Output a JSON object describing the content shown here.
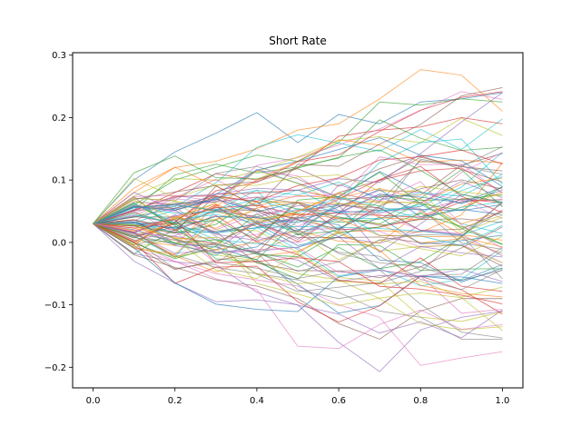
{
  "chart_data": {
    "type": "line",
    "title": "Short Rate",
    "xlabel": "",
    "ylabel": "",
    "xlim": [
      -0.05,
      1.05
    ],
    "ylim": [
      -0.233,
      0.304
    ],
    "grid": false,
    "x": [
      0.0,
      0.1,
      0.2,
      0.3,
      0.4,
      0.5,
      0.6,
      0.7,
      0.8,
      0.9,
      1.0
    ],
    "x_ticks": [
      0.0,
      0.2,
      0.4,
      0.6,
      0.8,
      1.0
    ],
    "x_tick_labels": [
      "0.0",
      "0.2",
      "0.4",
      "0.6",
      "0.8",
      "1.0"
    ],
    "y_ticks": [
      -0.2,
      -0.1,
      0.0,
      0.1,
      0.2,
      0.3
    ],
    "y_tick_labels": [
      "−0.2",
      "−0.1",
      "0.0",
      "0.1",
      "0.2",
      "0.3"
    ],
    "series_count": 100,
    "start_value": 0.03,
    "highlighted_series": [
      {
        "values": [
          0.03,
          0.1,
          0.145,
          0.175,
          0.208,
          0.16,
          0.205,
          0.19,
          0.225,
          0.23,
          0.24
        ]
      },
      {
        "values": [
          0.03,
          0.08,
          0.12,
          0.13,
          0.15,
          0.18,
          0.19,
          0.23,
          0.277,
          0.268,
          0.21
        ]
      },
      {
        "values": [
          0.03,
          0.06,
          0.1,
          0.12,
          0.14,
          0.13,
          0.16,
          0.225,
          0.22,
          0.23,
          0.225
        ]
      },
      {
        "values": [
          0.03,
          0.05,
          0.08,
          0.11,
          0.1,
          0.12,
          0.17,
          0.18,
          0.185,
          0.2,
          0.19
        ]
      },
      {
        "values": [
          0.03,
          -0.03,
          -0.065,
          -0.095,
          -0.092,
          -0.1,
          -0.16,
          -0.207,
          -0.14,
          -0.12,
          -0.11
        ]
      },
      {
        "values": [
          0.03,
          -0.02,
          -0.04,
          -0.06,
          -0.07,
          -0.09,
          -0.13,
          -0.155,
          -0.11,
          -0.09,
          -0.09
        ]
      },
      {
        "values": [
          0.03,
          0.0,
          -0.03,
          -0.05,
          -0.06,
          -0.07,
          -0.1,
          -0.12,
          -0.197,
          -0.185,
          -0.175
        ]
      },
      {
        "values": [
          0.03,
          0.01,
          -0.02,
          -0.04,
          -0.05,
          -0.06,
          -0.08,
          -0.11,
          -0.12,
          -0.155,
          -0.155
        ]
      },
      {
        "values": [
          0.03,
          0.02,
          0.0,
          -0.02,
          -0.03,
          -0.05,
          -0.06,
          -0.09,
          -0.13,
          -0.14,
          -0.135
        ]
      }
    ],
    "colors": [
      "#1f77b4",
      "#ff7f0e",
      "#2ca02c",
      "#d62728",
      "#9467bd",
      "#8c564b",
      "#e377c2",
      "#7f7f7f",
      "#bcbd22",
      "#17becf"
    ]
  }
}
